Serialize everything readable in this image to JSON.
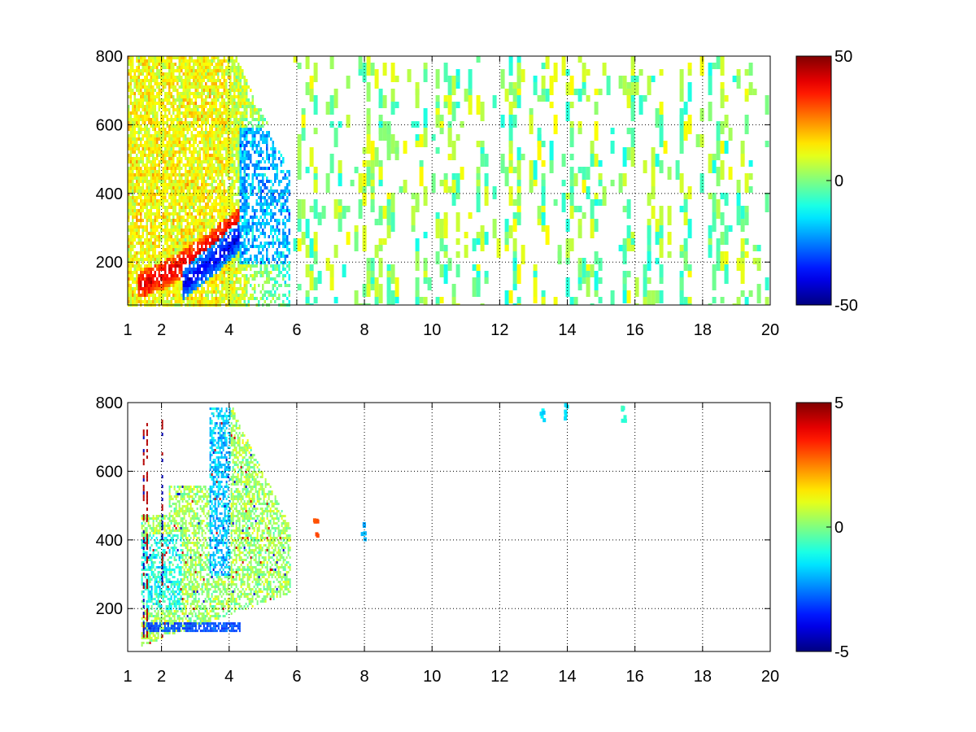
{
  "figure": {
    "background": "#ffffff",
    "colormap": "jet"
  },
  "chart_data": [
    {
      "type": "heatmap",
      "title": "",
      "xlabel": "",
      "ylabel": "",
      "xlim": [
        1,
        20
      ],
      "ylim": [
        75,
        800
      ],
      "x_ticks": [
        1,
        2,
        4,
        6,
        8,
        10,
        12,
        14,
        16,
        18,
        20
      ],
      "x_tick_labels": [
        "1",
        "2",
        "4",
        "6",
        "8",
        "10",
        "12",
        "14",
        "16",
        "18",
        "20"
      ],
      "y_ticks": [
        200,
        400,
        600,
        800
      ],
      "y_tick_labels": [
        "200",
        "400",
        "600",
        "800"
      ],
      "grid": true,
      "grid_style": "dotted",
      "colorbar": {
        "min": -50,
        "max": 50,
        "ticks": [
          50,
          0,
          -50
        ],
        "tick_labels": [
          "50",
          "0",
          "-50"
        ]
      },
      "features": {
        "dense_region_x": [
          1,
          5.8
        ],
        "ridge_positive_value": 40,
        "ridge_negative_value": -40,
        "sparse_value_range": [
          -12,
          12
        ]
      }
    },
    {
      "type": "heatmap",
      "title": "",
      "xlabel": "",
      "ylabel": "",
      "xlim": [
        1,
        20
      ],
      "ylim": [
        75,
        800
      ],
      "x_ticks": [
        1,
        2,
        4,
        6,
        8,
        10,
        12,
        14,
        16,
        18,
        20
      ],
      "x_tick_labels": [
        "1",
        "2",
        "4",
        "6",
        "8",
        "10",
        "12",
        "14",
        "16",
        "18",
        "20"
      ],
      "y_ticks": [
        200,
        400,
        600,
        800
      ],
      "y_tick_labels": [
        "200",
        "400",
        "600",
        "800"
      ],
      "grid": true,
      "grid_style": "dotted",
      "colorbar": {
        "min": -5,
        "max": 5,
        "ticks": [
          5,
          0,
          -5
        ],
        "tick_labels": [
          "5",
          "0",
          "-5"
        ]
      },
      "features": {
        "dense_region_x": [
          1.4,
          5.8
        ],
        "band_value": -3,
        "band_y": [
          135,
          160
        ],
        "band_x": [
          1.5,
          4.3
        ],
        "isolated_patches": [
          {
            "x": 13.25,
            "y": 760,
            "value": -1.5
          },
          {
            "x": 13.95,
            "y": 775,
            "value": -1.5
          },
          {
            "x": 15.65,
            "y": 770,
            "value": -0.8
          },
          {
            "x": 6.55,
            "y": 440,
            "value": 3
          },
          {
            "x": 7.95,
            "y": 430,
            "value": -2
          }
        ]
      }
    }
  ]
}
